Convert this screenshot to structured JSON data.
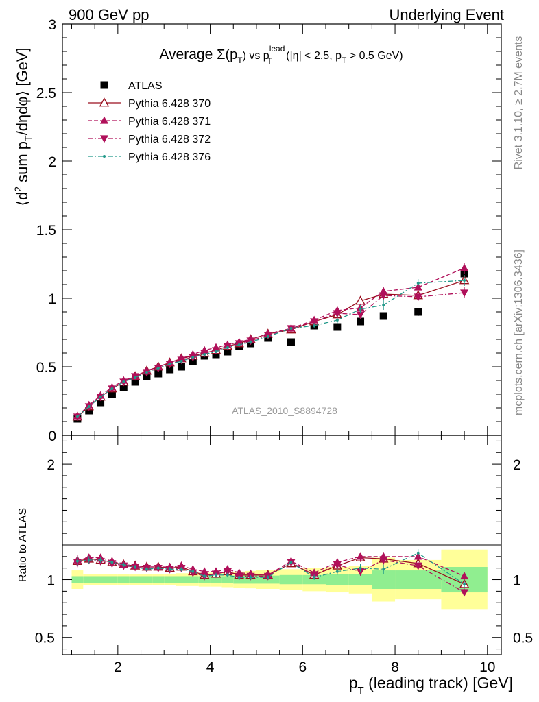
{
  "header": {
    "left": "900 GeV pp",
    "right": "Underlying Event"
  },
  "side_labels": {
    "rivet": "Rivet 3.1.10, ≥ 2.7M events",
    "mcplots": "mcplots.cern.ch [arXiv:1306.3436]"
  },
  "chart_data": [
    {
      "type": "scatter",
      "title_parts": {
        "a": "Average ",
        "sigma": "Σ(p",
        "sigma_sub": "T",
        "b": ") vs p",
        "lead_sup": "lead",
        "lead_sub": "T",
        "c": " (|η| < 2.5, p",
        "c_sub": "T",
        "d": " > 0.5 GeV)"
      },
      "ylabel_parts": {
        "a": "⟨d",
        "sup": "2",
        "b": " sum p",
        "sub": "T",
        "c": "/dηdφ⟩ [GeV]"
      },
      "watermark": "ATLAS_2010_S8894728",
      "xlim": [
        0.8,
        10.3
      ],
      "ylim": [
        0,
        3
      ],
      "y_ticks": [
        "0",
        "0.5",
        "1",
        "1.5",
        "2",
        "2.5",
        "3"
      ],
      "x": [
        1.125,
        1.375,
        1.625,
        1.875,
        2.125,
        2.375,
        2.625,
        2.875,
        3.125,
        3.375,
        3.625,
        3.875,
        4.125,
        4.375,
        4.625,
        4.875,
        5.25,
        5.75,
        6.25,
        6.75,
        7.25,
        7.75,
        8.5,
        9.5
      ],
      "series": [
        {
          "name": "ATLAS",
          "color": "#000000",
          "marker": "square",
          "line": "none",
          "values": [
            0.12,
            0.18,
            0.24,
            0.3,
            0.35,
            0.39,
            0.43,
            0.45,
            0.48,
            0.5,
            0.54,
            0.58,
            0.59,
            0.61,
            0.65,
            0.67,
            0.71,
            0.68,
            0.8,
            0.79,
            0.83,
            0.87,
            0.9,
            1.18
          ],
          "errors": [
            0.005,
            0.005,
            0.005,
            0.005,
            0.005,
            0.005,
            0.005,
            0.005,
            0.005,
            0.005,
            0.006,
            0.006,
            0.006,
            0.007,
            0.007,
            0.008,
            0.008,
            0.01,
            0.012,
            0.015,
            0.02,
            0.025,
            0.03,
            0.04
          ]
        },
        {
          "name": "Pythia 6.428 370",
          "color": "#9a0f1f",
          "marker": "triangle-open",
          "line": "solid",
          "values": [
            0.135,
            0.21,
            0.28,
            0.34,
            0.39,
            0.43,
            0.47,
            0.5,
            0.53,
            0.56,
            0.58,
            0.6,
            0.62,
            0.65,
            0.67,
            0.7,
            0.74,
            0.77,
            0.83,
            0.88,
            0.98,
            1.03,
            1.02,
            1.13
          ],
          "errors": [
            0.005,
            0.006,
            0.006,
            0.006,
            0.007,
            0.007,
            0.008,
            0.008,
            0.009,
            0.009,
            0.01,
            0.01,
            0.011,
            0.012,
            0.012,
            0.013,
            0.012,
            0.015,
            0.018,
            0.022,
            0.03,
            0.035,
            0.03,
            0.04
          ]
        },
        {
          "name": "Pythia 6.428 371",
          "color": "#b0105a",
          "marker": "triangle-up",
          "line": "dashed",
          "values": [
            0.14,
            0.22,
            0.29,
            0.35,
            0.4,
            0.43,
            0.47,
            0.5,
            0.53,
            0.56,
            0.59,
            0.62,
            0.64,
            0.66,
            0.68,
            0.7,
            0.74,
            0.78,
            0.84,
            0.91,
            0.93,
            1.05,
            1.08,
            1.22
          ],
          "errors": [
            0.005,
            0.006,
            0.006,
            0.006,
            0.007,
            0.007,
            0.008,
            0.008,
            0.009,
            0.009,
            0.01,
            0.01,
            0.011,
            0.012,
            0.012,
            0.013,
            0.012,
            0.015,
            0.018,
            0.022,
            0.03,
            0.035,
            0.03,
            0.04
          ]
        },
        {
          "name": "Pythia 6.428 372",
          "color": "#b0105a",
          "marker": "triangle-down",
          "line": "dashdot",
          "values": [
            0.135,
            0.21,
            0.28,
            0.34,
            0.39,
            0.43,
            0.46,
            0.49,
            0.52,
            0.55,
            0.57,
            0.6,
            0.62,
            0.65,
            0.67,
            0.69,
            0.73,
            0.78,
            0.83,
            0.89,
            0.88,
            1.02,
            1.01,
            1.04
          ],
          "errors": [
            0.005,
            0.006,
            0.006,
            0.006,
            0.007,
            0.007,
            0.008,
            0.008,
            0.009,
            0.009,
            0.01,
            0.01,
            0.011,
            0.012,
            0.012,
            0.013,
            0.012,
            0.015,
            0.018,
            0.022,
            0.03,
            0.035,
            0.03,
            0.04
          ]
        },
        {
          "name": "Pythia 6.428 376",
          "color": "#22998a",
          "marker": "dot",
          "line": "dashdot",
          "values": [
            0.135,
            0.21,
            0.28,
            0.34,
            0.39,
            0.42,
            0.46,
            0.49,
            0.52,
            0.54,
            0.57,
            0.59,
            0.61,
            0.64,
            0.66,
            0.68,
            0.72,
            0.78,
            0.8,
            0.84,
            0.92,
            0.95,
            1.11,
            1.13
          ],
          "errors": [
            0.005,
            0.006,
            0.006,
            0.006,
            0.007,
            0.007,
            0.008,
            0.008,
            0.009,
            0.009,
            0.01,
            0.01,
            0.011,
            0.012,
            0.012,
            0.013,
            0.012,
            0.015,
            0.018,
            0.022,
            0.03,
            0.035,
            0.03,
            0.04
          ]
        }
      ],
      "legend_position": "top-left"
    },
    {
      "type": "scatter",
      "ylabel": "Ratio to ATLAS",
      "xlabel_parts": {
        "a": "p",
        "sub": "T",
        "b": " (leading track) [GeV]"
      },
      "xlim": [
        0.8,
        10.3
      ],
      "ylim": [
        0.35,
        2.25
      ],
      "x_ticks": [
        "2",
        "4",
        "6",
        "8",
        "10"
      ],
      "y_ticks": [
        "0.5",
        "1",
        "2"
      ],
      "band_edges": [
        1.0,
        1.25,
        1.5,
        1.75,
        2.0,
        2.25,
        2.5,
        2.75,
        3.0,
        3.25,
        3.5,
        3.75,
        4.0,
        4.25,
        4.5,
        4.75,
        5.0,
        5.5,
        6.0,
        6.5,
        7.0,
        7.5,
        8.0,
        9.0,
        10.0
      ],
      "stat_band": [
        0.03,
        0.03,
        0.03,
        0.03,
        0.03,
        0.03,
        0.03,
        0.03,
        0.03,
        0.03,
        0.03,
        0.03,
        0.03,
        0.03,
        0.035,
        0.035,
        0.035,
        0.04,
        0.04,
        0.05,
        0.05,
        0.08,
        0.08,
        0.11
      ],
      "syst_band": [
        0.08,
        0.05,
        0.05,
        0.05,
        0.05,
        0.05,
        0.05,
        0.05,
        0.05,
        0.055,
        0.055,
        0.06,
        0.06,
        0.065,
        0.07,
        0.075,
        0.08,
        0.09,
        0.1,
        0.11,
        0.12,
        0.19,
        0.17,
        0.26
      ],
      "band_colors": {
        "stat": "#90ee90",
        "syst": "#ffff99"
      },
      "series": [
        {
          "name": "Pythia 6.428 370",
          "values": [
            1.16,
            1.18,
            1.17,
            1.15,
            1.13,
            1.12,
            1.11,
            1.11,
            1.1,
            1.11,
            1.07,
            1.04,
            1.05,
            1.07,
            1.04,
            1.04,
            1.04,
            1.14,
            1.04,
            1.12,
            1.19,
            1.18,
            1.14,
            0.96
          ]
        },
        {
          "name": "Pythia 6.428 371",
          "values": [
            1.17,
            1.19,
            1.19,
            1.16,
            1.13,
            1.12,
            1.11,
            1.11,
            1.11,
            1.12,
            1.09,
            1.07,
            1.07,
            1.09,
            1.06,
            1.05,
            1.04,
            1.16,
            1.06,
            1.15,
            1.2,
            1.2,
            1.2,
            1.03
          ]
        },
        {
          "name": "Pythia 6.428 372",
          "values": [
            1.15,
            1.17,
            1.16,
            1.14,
            1.12,
            1.11,
            1.1,
            1.1,
            1.09,
            1.1,
            1.06,
            1.03,
            1.05,
            1.07,
            1.03,
            1.03,
            1.03,
            1.15,
            1.04,
            1.13,
            1.07,
            1.17,
            1.12,
            0.89
          ]
        },
        {
          "name": "Pythia 6.428 376",
          "values": [
            1.16,
            1.17,
            1.17,
            1.15,
            1.13,
            1.11,
            1.09,
            1.1,
            1.09,
            1.09,
            1.07,
            1.03,
            1.04,
            1.04,
            1.02,
            1.02,
            1.02,
            1.15,
            1.02,
            1.07,
            1.1,
            1.09,
            1.23,
            0.96
          ]
        }
      ]
    }
  ]
}
